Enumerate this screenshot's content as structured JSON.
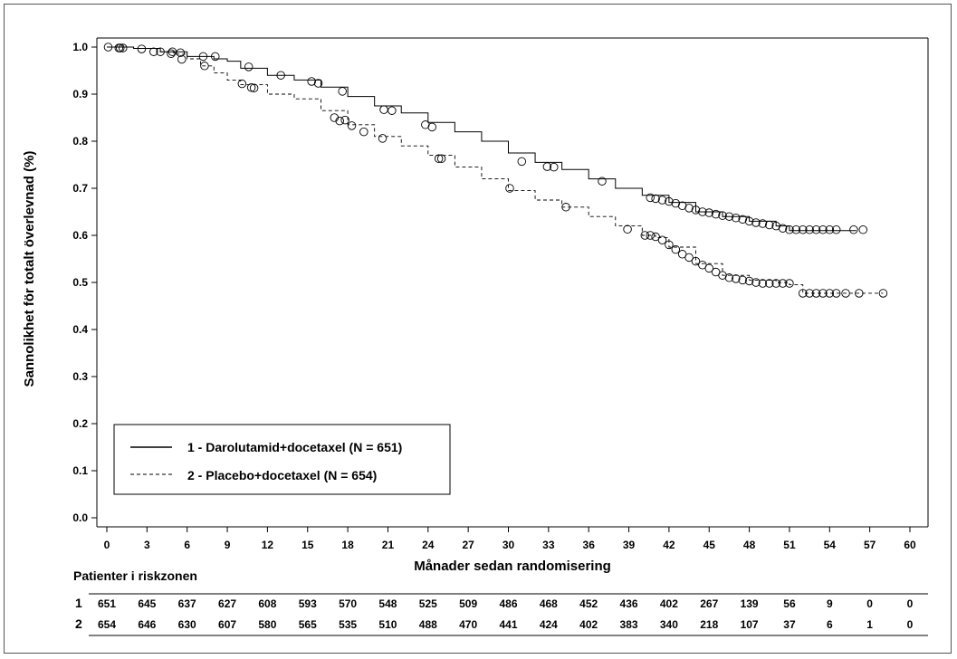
{
  "chart_data": {
    "type": "line",
    "step": true,
    "xlabel": "Månader sedan randomisering",
    "ylabel": "Sannolikhet för totalt överlevnad (%)",
    "xlim": [
      0,
      60
    ],
    "ylim": [
      0,
      1.0
    ],
    "xticks": [
      0,
      3,
      6,
      9,
      12,
      15,
      18,
      21,
      24,
      27,
      30,
      33,
      36,
      39,
      42,
      45,
      48,
      51,
      54,
      57,
      60
    ],
    "yticks": [
      "0.0",
      "0.1",
      "0.2",
      "0.3",
      "0.4",
      "0.5",
      "0.6",
      "0.7",
      "0.8",
      "0.9",
      "1.0"
    ],
    "grid": false,
    "legend_position": "bottom-left",
    "series": [
      {
        "name": "1 - Darolutamid+docetaxel (N = 651)",
        "line_style": "solid",
        "x": [
          0,
          2,
          4,
          6,
          8,
          9,
          10,
          12,
          14,
          16,
          18,
          20,
          22,
          24,
          26,
          28,
          30,
          32,
          34,
          36,
          38,
          40,
          42,
          44,
          46,
          48,
          50,
          51,
          52,
          54,
          56
        ],
        "y": [
          1.0,
          0.997,
          0.99,
          0.98,
          0.975,
          0.97,
          0.955,
          0.94,
          0.93,
          0.915,
          0.895,
          0.875,
          0.86,
          0.84,
          0.82,
          0.8,
          0.775,
          0.755,
          0.74,
          0.72,
          0.7,
          0.685,
          0.67,
          0.65,
          0.64,
          0.63,
          0.62,
          0.61,
          0.61,
          0.61,
          0.61
        ],
        "censored": [
          [
            0.1,
            1.0
          ],
          [
            0.9,
            0.998
          ],
          [
            1.2,
            0.998
          ],
          [
            2.6,
            0.996
          ],
          [
            3.5,
            0.99
          ],
          [
            4.0,
            0.99
          ],
          [
            4.9,
            0.99
          ],
          [
            5.5,
            0.988
          ],
          [
            7.2,
            0.98
          ],
          [
            8.1,
            0.98
          ],
          [
            10.6,
            0.958
          ],
          [
            13.0,
            0.94
          ],
          [
            15.3,
            0.927
          ],
          [
            15.8,
            0.923
          ],
          [
            17.6,
            0.906
          ],
          [
            20.7,
            0.867
          ],
          [
            21.3,
            0.865
          ],
          [
            23.8,
            0.835
          ],
          [
            24.3,
            0.83
          ],
          [
            31.0,
            0.757
          ],
          [
            32.9,
            0.746
          ],
          [
            33.4,
            0.745
          ],
          [
            37.0,
            0.715
          ],
          [
            40.6,
            0.68
          ],
          [
            41.0,
            0.678
          ],
          [
            41.5,
            0.675
          ],
          [
            42.0,
            0.672
          ],
          [
            42.5,
            0.668
          ],
          [
            43.0,
            0.663
          ],
          [
            43.5,
            0.658
          ],
          [
            44.0,
            0.654
          ],
          [
            44.5,
            0.65
          ],
          [
            45.0,
            0.648
          ],
          [
            45.5,
            0.645
          ],
          [
            46.0,
            0.642
          ],
          [
            46.5,
            0.64
          ],
          [
            47.0,
            0.637
          ],
          [
            47.5,
            0.634
          ],
          [
            48.0,
            0.63
          ],
          [
            48.5,
            0.627
          ],
          [
            49.0,
            0.625
          ],
          [
            49.5,
            0.622
          ],
          [
            50.0,
            0.62
          ],
          [
            50.5,
            0.615
          ],
          [
            51.0,
            0.612
          ],
          [
            51.5,
            0.612
          ],
          [
            52.0,
            0.612
          ],
          [
            52.5,
            0.612
          ],
          [
            53.0,
            0.612
          ],
          [
            53.5,
            0.612
          ],
          [
            54.0,
            0.612
          ],
          [
            54.5,
            0.612
          ],
          [
            55.8,
            0.612
          ],
          [
            56.5,
            0.612
          ]
        ]
      },
      {
        "name": "2 - Placebo+docetaxel (N = 654)",
        "line_style": "dashed",
        "x": [
          0,
          2,
          4,
          5,
          6,
          7,
          8,
          9,
          10,
          12,
          14,
          16,
          18,
          20,
          22,
          24,
          26,
          28,
          30,
          32,
          34,
          36,
          38,
          40,
          41,
          42,
          44,
          46,
          48,
          50,
          51,
          52,
          54,
          56,
          58
        ],
        "y": [
          1.0,
          0.997,
          0.99,
          0.985,
          0.975,
          0.96,
          0.945,
          0.93,
          0.92,
          0.9,
          0.89,
          0.865,
          0.835,
          0.81,
          0.79,
          0.77,
          0.745,
          0.72,
          0.695,
          0.675,
          0.66,
          0.64,
          0.62,
          0.6,
          0.595,
          0.575,
          0.54,
          0.515,
          0.505,
          0.5,
          0.495,
          0.477,
          0.477,
          0.477,
          0.477
        ],
        "censored": [
          [
            1.0,
            0.998
          ],
          [
            4.8,
            0.986
          ],
          [
            5.6,
            0.974
          ],
          [
            7.3,
            0.96
          ],
          [
            10.1,
            0.922
          ],
          [
            10.8,
            0.914
          ],
          [
            11.0,
            0.913
          ],
          [
            17.0,
            0.85
          ],
          [
            17.4,
            0.843
          ],
          [
            17.8,
            0.845
          ],
          [
            18.3,
            0.833
          ],
          [
            19.2,
            0.82
          ],
          [
            20.6,
            0.806
          ],
          [
            24.8,
            0.763
          ],
          [
            25.0,
            0.763
          ],
          [
            30.1,
            0.7
          ],
          [
            34.3,
            0.66
          ],
          [
            38.9,
            0.613
          ],
          [
            40.2,
            0.6
          ],
          [
            40.6,
            0.6
          ],
          [
            41.0,
            0.597
          ],
          [
            41.5,
            0.59
          ],
          [
            42.0,
            0.58
          ],
          [
            42.5,
            0.57
          ],
          [
            43.0,
            0.56
          ],
          [
            43.5,
            0.553
          ],
          [
            44.0,
            0.545
          ],
          [
            44.5,
            0.537
          ],
          [
            45.0,
            0.53
          ],
          [
            45.5,
            0.522
          ],
          [
            46.0,
            0.515
          ],
          [
            46.5,
            0.51
          ],
          [
            47.0,
            0.508
          ],
          [
            47.5,
            0.505
          ],
          [
            48.0,
            0.503
          ],
          [
            48.5,
            0.5
          ],
          [
            49.0,
            0.498
          ],
          [
            49.5,
            0.498
          ],
          [
            50.0,
            0.498
          ],
          [
            50.5,
            0.498
          ],
          [
            51.0,
            0.498
          ],
          [
            52.0,
            0.477
          ],
          [
            52.5,
            0.477
          ],
          [
            53.0,
            0.477
          ],
          [
            53.5,
            0.477
          ],
          [
            54.0,
            0.477
          ],
          [
            54.5,
            0.477
          ],
          [
            55.2,
            0.477
          ],
          [
            56.2,
            0.477
          ],
          [
            58.0,
            0.477
          ]
        ]
      }
    ],
    "risk_table": {
      "title": "Patienter i riskzonen",
      "rows": [
        {
          "label": "1",
          "values": [
            "651",
            "645",
            "637",
            "627",
            "608",
            "593",
            "570",
            "548",
            "525",
            "509",
            "486",
            "468",
            "452",
            "436",
            "402",
            "267",
            "139",
            "56",
            "9",
            "0",
            "0"
          ]
        },
        {
          "label": "2",
          "values": [
            "654",
            "646",
            "630",
            "607",
            "580",
            "565",
            "535",
            "510",
            "488",
            "470",
            "441",
            "424",
            "402",
            "383",
            "340",
            "218",
            "107",
            "37",
            "6",
            "1",
            "0"
          ]
        }
      ]
    }
  }
}
